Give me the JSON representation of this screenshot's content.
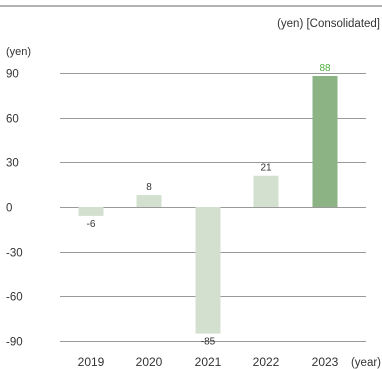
{
  "chart_data": {
    "type": "bar",
    "note": "(yen) [Consolidated]",
    "y_unit": "(yen)",
    "x_unit": "(year)",
    "categories": [
      "2019",
      "2020",
      "2021",
      "2022",
      "2023"
    ],
    "values": [
      -6,
      8,
      -85,
      21,
      88
    ],
    "value_labels": [
      "-6",
      "8",
      "-85",
      "21",
      "88"
    ],
    "ylim": [
      -90,
      90
    ],
    "yticks": [
      90,
      60,
      30,
      0,
      -30,
      -60,
      -90
    ],
    "ytick_labels": [
      "90",
      "60",
      "30",
      "0",
      "-30",
      "-60",
      "-90"
    ],
    "grid": true,
    "colors": {
      "bar": "#d3e0cf",
      "highlight_bar": "#8bb384",
      "highlight_label": "#4fae3f",
      "grid": "#9a9a9a",
      "text": "#333333"
    },
    "highlight_index": 4
  }
}
